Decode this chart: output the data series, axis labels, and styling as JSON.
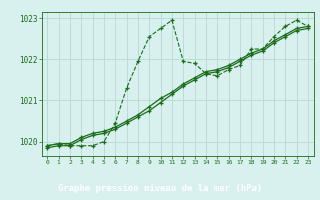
{
  "xlabel_label": "Graphe pression niveau de la mer (hPa)",
  "xlim": [
    -0.5,
    23.5
  ],
  "ylim": [
    1019.65,
    1023.15
  ],
  "yticks": [
    1020,
    1021,
    1022,
    1023
  ],
  "xticks": [
    0,
    1,
    2,
    3,
    4,
    5,
    6,
    7,
    8,
    9,
    10,
    11,
    12,
    13,
    14,
    15,
    16,
    17,
    18,
    19,
    20,
    21,
    22,
    23
  ],
  "bg_color": "#d8f0ee",
  "grid_color": "#b8d8d4",
  "line_color": "#1a6b1a",
  "footer_bg": "#2d6b2d",
  "footer_text": "#ffffff",
  "series1_jagged": {
    "x": [
      0,
      1,
      2,
      3,
      4,
      5,
      6,
      7,
      8,
      9,
      10,
      11,
      12,
      13,
      14,
      15,
      16,
      17,
      18,
      19,
      20,
      21,
      22,
      23
    ],
    "y": [
      1019.9,
      1019.95,
      1019.9,
      1019.9,
      1019.9,
      1020.0,
      1020.45,
      1021.3,
      1021.95,
      1022.55,
      1022.75,
      1022.95,
      1021.95,
      1021.9,
      1021.65,
      1021.6,
      1021.75,
      1021.85,
      1022.25,
      1022.25,
      1022.55,
      1022.8,
      1022.95,
      1022.8
    ]
  },
  "series2_smooth": {
    "x": [
      0,
      1,
      2,
      3,
      4,
      5,
      6,
      7,
      8,
      9,
      10,
      11,
      12,
      13,
      14,
      15,
      16,
      17,
      18,
      19,
      20,
      21,
      22,
      23
    ],
    "y": [
      1019.85,
      1019.9,
      1019.9,
      1020.05,
      1020.15,
      1020.2,
      1020.3,
      1020.45,
      1020.6,
      1020.75,
      1020.95,
      1021.15,
      1021.35,
      1021.5,
      1021.65,
      1021.7,
      1021.8,
      1021.95,
      1022.1,
      1022.2,
      1022.4,
      1022.55,
      1022.7,
      1022.75
    ]
  },
  "series3_smooth": {
    "x": [
      0,
      1,
      2,
      3,
      4,
      5,
      6,
      7,
      8,
      9,
      10,
      11,
      12,
      13,
      14,
      15,
      16,
      17,
      18,
      19,
      20,
      21,
      22,
      23
    ],
    "y": [
      1019.9,
      1019.95,
      1019.95,
      1020.1,
      1020.2,
      1020.25,
      1020.35,
      1020.5,
      1020.65,
      1020.85,
      1021.05,
      1021.2,
      1021.4,
      1021.55,
      1021.7,
      1021.75,
      1021.85,
      1022.0,
      1022.15,
      1022.25,
      1022.45,
      1022.6,
      1022.75,
      1022.8
    ]
  }
}
